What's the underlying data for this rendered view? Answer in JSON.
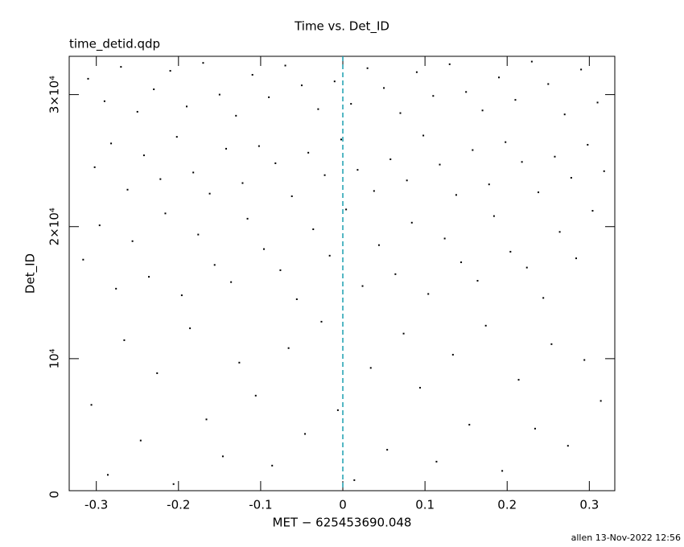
{
  "chart_data": {
    "type": "scatter",
    "title": "Time vs. Det_ID",
    "subtitle": "time_detid.qdp",
    "x_label": "MET − 625453690.048",
    "y_label": "Det_ID",
    "footer": "allen 13-Nov-2022 12:56",
    "color": "#000000",
    "xlim": [
      -0.333,
      0.331
    ],
    "ylim": [
      0,
      32900
    ],
    "xticks": [
      -0.3,
      -0.2,
      -0.1,
      0,
      0.1,
      0.2,
      0.3
    ],
    "yticks": [
      0,
      {
        "value": 10000,
        "label": "10⁴"
      },
      {
        "value": 20000,
        "label": "2×10⁴"
      },
      {
        "value": 30000,
        "label": "3×10⁴"
      }
    ],
    "vlines": [
      0
    ],
    "vline_color": "#1a9fb0",
    "x": [
      -0.31,
      -0.29,
      -0.27,
      -0.25,
      -0.23,
      -0.21,
      -0.19,
      -0.17,
      -0.15,
      -0.13,
      -0.11,
      -0.09,
      -0.07,
      -0.05,
      -0.03,
      -0.01,
      0.01,
      0.03,
      0.05,
      0.07,
      0.09,
      0.11,
      0.13,
      0.15,
      0.17,
      0.19,
      0.21,
      0.23,
      0.25,
      0.27,
      0.29,
      0.31,
      -0.302,
      -0.282,
      -0.262,
      -0.242,
      -0.222,
      -0.202,
      -0.182,
      -0.162,
      -0.142,
      -0.122,
      -0.102,
      -0.082,
      -0.062,
      -0.042,
      -0.022,
      -0.002,
      0.018,
      0.038,
      0.058,
      0.078,
      0.098,
      0.118,
      0.138,
      0.158,
      0.178,
      0.198,
      0.218,
      0.238,
      0.258,
      0.278,
      0.298,
      0.318,
      -0.316,
      -0.296,
      -0.276,
      -0.256,
      -0.236,
      -0.216,
      -0.196,
      -0.176,
      -0.156,
      -0.136,
      -0.116,
      -0.096,
      -0.076,
      -0.056,
      -0.036,
      -0.016,
      0.004,
      0.024,
      0.044,
      0.064,
      0.084,
      0.104,
      0.124,
      0.144,
      0.164,
      0.184,
      0.204,
      0.224,
      0.244,
      0.264,
      0.284,
      0.304,
      -0.306,
      -0.286,
      -0.266,
      -0.246,
      -0.226,
      -0.206,
      -0.186,
      -0.166,
      -0.146,
      -0.126,
      -0.106,
      -0.086,
      -0.066,
      -0.046,
      -0.026,
      -0.006,
      0.014,
      0.034,
      0.054,
      0.074,
      0.094,
      0.114,
      0.134,
      0.154,
      0.174,
      0.194,
      0.214,
      0.234,
      0.254,
      0.274,
      0.294,
      0.314
    ],
    "values": [
      31200,
      29500,
      32100,
      28700,
      30400,
      31800,
      29100,
      32400,
      30000,
      28400,
      31500,
      29800,
      32200,
      30700,
      28900,
      31000,
      29300,
      32000,
      30500,
      28600,
      31700,
      29900,
      32300,
      30200,
      28800,
      31300,
      29600,
      32500,
      30800,
      28500,
      31900,
      29400,
      24500,
      26300,
      22800,
      25400,
      23600,
      26800,
      24100,
      22500,
      25900,
      23300,
      26100,
      24800,
      22300,
      25600,
      23900,
      26600,
      24300,
      22700,
      25100,
      23500,
      26900,
      24700,
      22400,
      25800,
      23200,
      26400,
      24900,
      22600,
      25300,
      23700,
      26200,
      24200,
      17500,
      20100,
      15300,
      18900,
      16200,
      21000,
      14800,
      19400,
      17100,
      15800,
      20600,
      18300,
      16700,
      14500,
      19800,
      17800,
      21300,
      15500,
      18600,
      16400,
      20300,
      14900,
      19100,
      17300,
      15900,
      20800,
      18100,
      16900,
      14600,
      19600,
      17600,
      21200,
      6500,
      1200,
      11400,
      3800,
      8900,
      500,
      12300,
      5400,
      2600,
      9700,
      7200,
      1900,
      10800,
      4300,
      12800,
      6100,
      800,
      9300,
      3100,
      11900,
      7800,
      2200,
      10300,
      5000,
      12500,
      1500,
      8400,
      4700,
      11100,
      3400,
      9900,
      6800
    ]
  }
}
